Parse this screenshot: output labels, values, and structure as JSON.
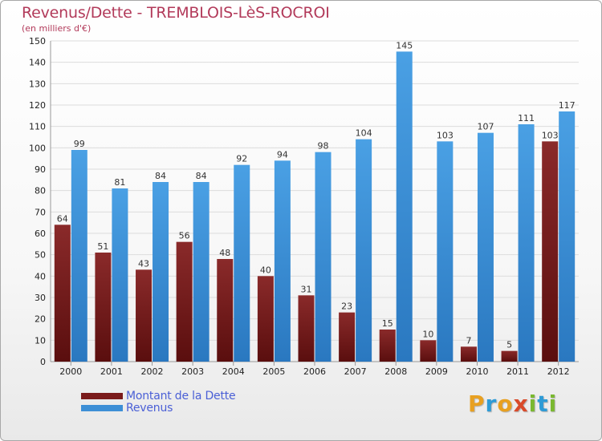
{
  "header": {
    "title": "Revenus/Dette - TREMBLOIS-LèS-ROCROI",
    "subtitle": "(en milliers d'€)"
  },
  "chart_data": {
    "type": "bar",
    "title": "Revenus/Dette - TREMBLOIS-LèS-ROCROI",
    "ylabel": "(en milliers d'€)",
    "xlabel": "",
    "categories": [
      "2000",
      "2001",
      "2002",
      "2003",
      "2004",
      "2005",
      "2006",
      "2007",
      "2008",
      "2009",
      "2010",
      "2011",
      "2012"
    ],
    "series": [
      {
        "name": "Montant de la Dette",
        "color": "#7a1a1a",
        "values": [
          64,
          51,
          43,
          56,
          48,
          40,
          31,
          23,
          15,
          10,
          7,
          5,
          103
        ]
      },
      {
        "name": "Revenus",
        "color": "#3d8fd6",
        "values": [
          99,
          81,
          84,
          84,
          92,
          94,
          98,
          104,
          145,
          103,
          107,
          111,
          117
        ]
      }
    ],
    "ylim": [
      0,
      150
    ],
    "yticks": [
      0,
      10,
      20,
      30,
      40,
      50,
      60,
      70,
      80,
      90,
      100,
      110,
      120,
      130,
      140,
      150
    ],
    "grid": true,
    "legend": "bottom-left"
  },
  "legend": {
    "items": [
      {
        "label": "Montant de la Dette",
        "color": "#7a1a1a"
      },
      {
        "label": "Revenus",
        "color": "#3d8fd6"
      }
    ]
  },
  "brand": {
    "letters": [
      "P",
      "r",
      "o",
      "x",
      "i",
      "t",
      "i"
    ],
    "colors": [
      "#e8a020",
      "#2e9bd6",
      "#e8a020",
      "#d94a2a",
      "#7ab830",
      "#2e9bd6",
      "#7ab830"
    ]
  }
}
